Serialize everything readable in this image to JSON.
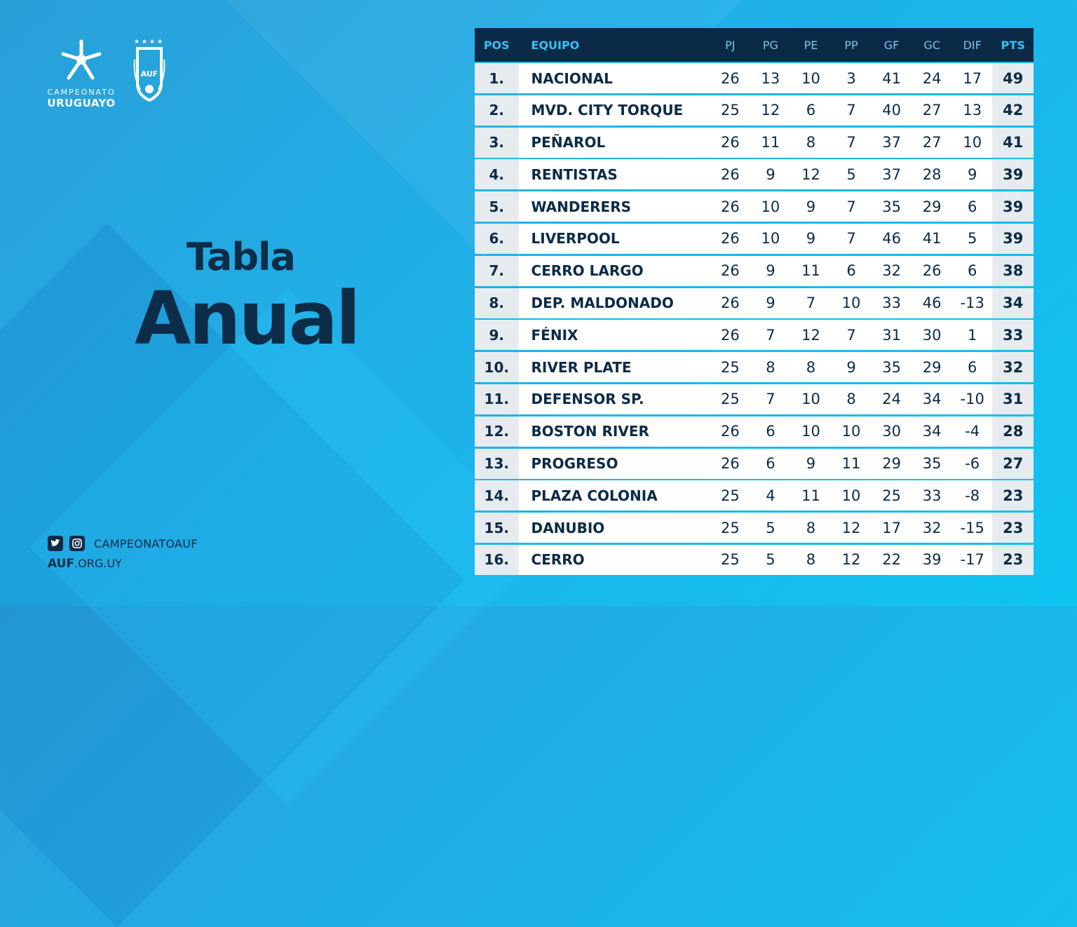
{
  "brand": {
    "line1": "CAMPEONATO",
    "line2": "URUGUAYO",
    "crest_stars": "★★★★",
    "crest_text": "AUF"
  },
  "title": {
    "line1": "Tabla",
    "line2": "Anual"
  },
  "social": {
    "handle": "CAMPEONATOAUF",
    "web_bold": "AUF",
    "web_rest": ".ORG.UY",
    "icons": [
      "twitter-icon",
      "instagram-icon"
    ]
  },
  "colors": {
    "navy": "#0b2a47",
    "accent": "#39c0f2",
    "row_bg": "#ffffff",
    "cell_gray": "#e6ebef"
  },
  "table": {
    "headers": {
      "pos": "POS",
      "team": "EQUIPO",
      "pj": "PJ",
      "pg": "PG",
      "pe": "PE",
      "pp": "PP",
      "gf": "GF",
      "gc": "GC",
      "dif": "DIF",
      "pts": "PTS"
    },
    "rows": [
      {
        "pos": "1.",
        "team": "NACIONAL",
        "pj": "26",
        "pg": "13",
        "pe": "10",
        "pp": "3",
        "gf": "41",
        "gc": "24",
        "dif": "17",
        "pts": "49"
      },
      {
        "pos": "2.",
        "team": "MVD. CITY TORQUE",
        "pj": "25",
        "pg": "12",
        "pe": "6",
        "pp": "7",
        "gf": "40",
        "gc": "27",
        "dif": "13",
        "pts": "42"
      },
      {
        "pos": "3.",
        "team": "PEÑAROL",
        "pj": "26",
        "pg": "11",
        "pe": "8",
        "pp": "7",
        "gf": "37",
        "gc": "27",
        "dif": "10",
        "pts": "41"
      },
      {
        "pos": "4.",
        "team": "RENTISTAS",
        "pj": "26",
        "pg": "9",
        "pe": "12",
        "pp": "5",
        "gf": "37",
        "gc": "28",
        "dif": "9",
        "pts": "39"
      },
      {
        "pos": "5.",
        "team": "WANDERERS",
        "pj": "26",
        "pg": "10",
        "pe": "9",
        "pp": "7",
        "gf": "35",
        "gc": "29",
        "dif": "6",
        "pts": "39"
      },
      {
        "pos": "6.",
        "team": "LIVERPOOL",
        "pj": "26",
        "pg": "10",
        "pe": "9",
        "pp": "7",
        "gf": "46",
        "gc": "41",
        "dif": "5",
        "pts": "39"
      },
      {
        "pos": "7.",
        "team": "CERRO LARGO",
        "pj": "26",
        "pg": "9",
        "pe": "11",
        "pp": "6",
        "gf": "32",
        "gc": "26",
        "dif": "6",
        "pts": "38"
      },
      {
        "pos": "8.",
        "team": "DEP. MALDONADO",
        "pj": "26",
        "pg": "9",
        "pe": "7",
        "pp": "10",
        "gf": "33",
        "gc": "46",
        "dif": "-13",
        "pts": "34"
      },
      {
        "pos": "9.",
        "team": "FÉNIX",
        "pj": "26",
        "pg": "7",
        "pe": "12",
        "pp": "7",
        "gf": "31",
        "gc": "30",
        "dif": "1",
        "pts": "33"
      },
      {
        "pos": "10.",
        "team": "RIVER PLATE",
        "pj": "25",
        "pg": "8",
        "pe": "8",
        "pp": "9",
        "gf": "35",
        "gc": "29",
        "dif": "6",
        "pts": "32"
      },
      {
        "pos": "11.",
        "team": "DEFENSOR SP.",
        "pj": "25",
        "pg": "7",
        "pe": "10",
        "pp": "8",
        "gf": "24",
        "gc": "34",
        "dif": "-10",
        "pts": "31"
      },
      {
        "pos": "12.",
        "team": "BOSTON RIVER",
        "pj": "26",
        "pg": "6",
        "pe": "10",
        "pp": "10",
        "gf": "30",
        "gc": "34",
        "dif": "-4",
        "pts": "28"
      },
      {
        "pos": "13.",
        "team": "PROGRESO",
        "pj": "26",
        "pg": "6",
        "pe": "9",
        "pp": "11",
        "gf": "29",
        "gc": "35",
        "dif": "-6",
        "pts": "27"
      },
      {
        "pos": "14.",
        "team": "PLAZA COLONIA",
        "pj": "25",
        "pg": "4",
        "pe": "11",
        "pp": "10",
        "gf": "25",
        "gc": "33",
        "dif": "-8",
        "pts": "23"
      },
      {
        "pos": "15.",
        "team": "DANUBIO",
        "pj": "25",
        "pg": "5",
        "pe": "8",
        "pp": "12",
        "gf": "17",
        "gc": "32",
        "dif": "-15",
        "pts": "23"
      },
      {
        "pos": "16.",
        "team": "CERRO",
        "pj": "25",
        "pg": "5",
        "pe": "8",
        "pp": "12",
        "gf": "22",
        "gc": "39",
        "dif": "-17",
        "pts": "23"
      }
    ]
  }
}
